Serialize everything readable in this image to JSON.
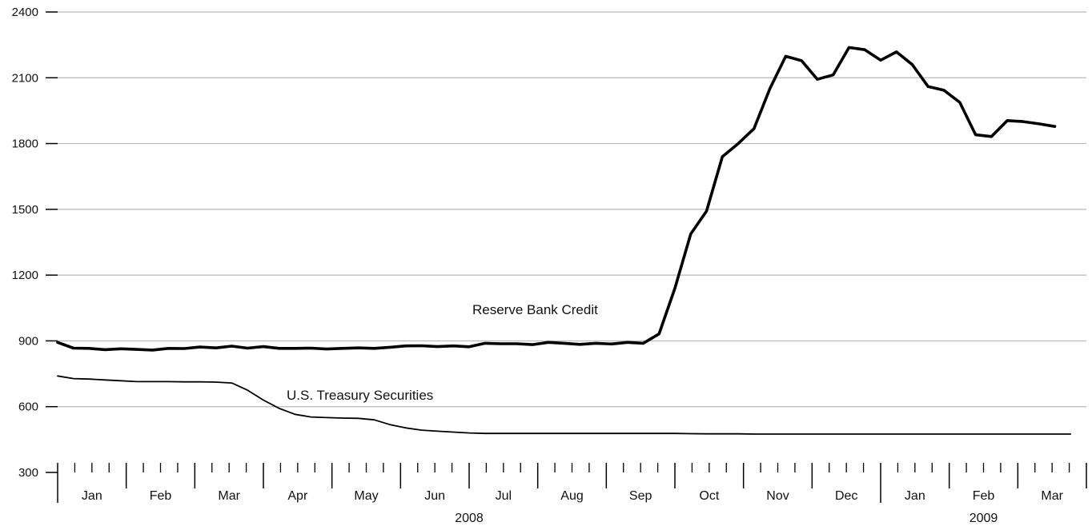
{
  "chart_data": {
    "type": "line",
    "ylim": [
      300,
      2400
    ],
    "yticks": [
      300,
      600,
      900,
      1200,
      1500,
      1800,
      2100,
      2400
    ],
    "grid": "horizontal",
    "months": [
      "Jan",
      "Feb",
      "Mar",
      "Apr",
      "May",
      "Jun",
      "Jul",
      "Aug",
      "Sep",
      "Oct",
      "Nov",
      "Dec",
      "Jan",
      "Feb",
      "Mar"
    ],
    "years": [
      {
        "label": "2008",
        "first_month": 0,
        "last_month": 11
      },
      {
        "label": "2009",
        "first_month": 12,
        "last_month": 14
      }
    ],
    "series": [
      {
        "name": "Reserve Bank Credit",
        "color": "#000000",
        "weight": "heavy",
        "values": [
          893,
          867,
          866,
          860,
          864,
          861,
          858,
          866,
          865,
          872,
          868,
          876,
          867,
          874,
          866,
          866,
          867,
          863,
          866,
          868,
          866,
          871,
          877,
          878,
          874,
          877,
          873,
          889,
          887,
          887,
          883,
          893,
          889,
          884,
          889,
          886,
          893,
          889,
          932,
          1140,
          1388,
          1492,
          1740,
          1800,
          1868,
          2050,
          2198,
          2178,
          2093,
          2113,
          2238,
          2228,
          2180,
          2218,
          2160,
          2060,
          2043,
          1988,
          1840,
          1832,
          1905,
          1900,
          1890,
          1878
        ],
        "x_start_month": 0,
        "weeks_per_step": 1
      },
      {
        "name": "U.S. Treasury Securities",
        "color": "#000000",
        "weight": "light",
        "values": [
          740,
          728,
          726,
          722,
          718,
          714,
          714,
          714,
          713,
          713,
          712,
          708,
          675,
          630,
          592,
          565,
          553,
          550,
          548,
          547,
          540,
          518,
          503,
          493,
          488,
          484,
          480,
          478,
          478,
          478,
          478,
          478,
          478,
          478,
          478,
          478,
          478,
          478,
          478,
          478,
          477,
          476,
          476,
          476,
          475,
          475,
          475,
          475,
          475,
          475,
          475,
          475,
          475,
          475,
          475,
          475,
          475,
          475,
          475,
          475,
          475,
          475,
          475,
          475,
          475
        ],
        "x_start_month": 0,
        "weeks_per_step": 1
      }
    ]
  }
}
